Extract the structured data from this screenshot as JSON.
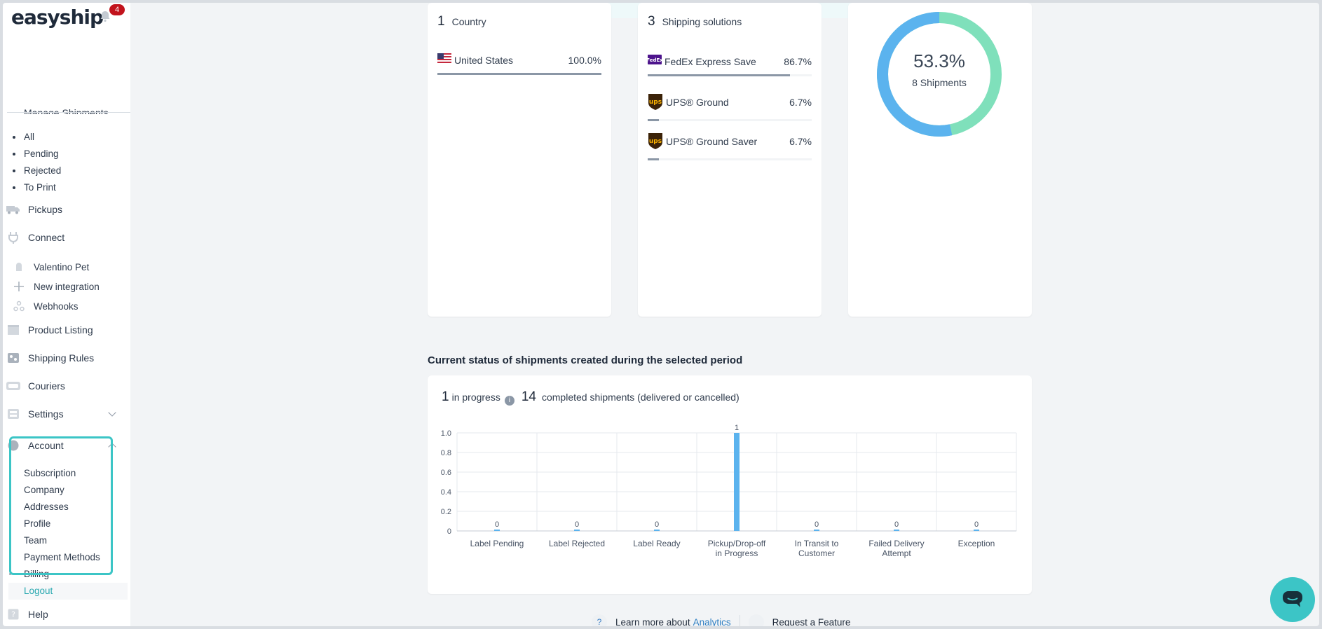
{
  "brand": {
    "logo_text": "easyship",
    "notification_count": "4"
  },
  "sidebar": {
    "manage_shipments_label": "Manage Shipments",
    "shipment_filters": [
      "All",
      "Pending",
      "Rejected",
      "To Print"
    ],
    "pickups": "Pickups",
    "connect": "Connect",
    "connect_items": [
      "Valentino Pet",
      "New integration",
      "Webhooks"
    ],
    "product_listing": "Product Listing",
    "shipping_rules": "Shipping Rules",
    "couriers": "Couriers",
    "settings": "Settings",
    "account": "Account",
    "account_items": [
      "Subscription",
      "Company",
      "Addresses",
      "Profile",
      "Team",
      "Payment Methods",
      "Billing",
      "Logout"
    ],
    "help": "Help"
  },
  "countries_card": {
    "count": "1",
    "label": "Country",
    "rows": [
      {
        "name": "United States",
        "pct_text": "100.0%",
        "fraction": 1.0
      }
    ]
  },
  "solutions_card": {
    "count": "3",
    "label": "Shipping solutions",
    "rows": [
      {
        "name": "FedEx Express Save",
        "pct_text": "86.7%",
        "fraction": 0.867,
        "logo": "fedex-logo"
      },
      {
        "name": "UPS® Ground",
        "pct_text": "6.7%",
        "fraction": 0.067,
        "logo": "ups-logo"
      },
      {
        "name": "UPS® Ground Saver",
        "pct_text": "6.7%",
        "fraction": 0.067,
        "logo": "ups-logo"
      }
    ]
  },
  "donut": {
    "percent_text": "53.3%",
    "shipments_text": "8 Shipments",
    "fraction": 0.533,
    "colors": {
      "primary": "#5bb3ee",
      "secondary": "#7fe0bb"
    }
  },
  "status_section": {
    "title": "Current status of shipments created during the selected period",
    "in_progress_count": "1",
    "in_progress_label": "in progress",
    "completed_count": "14",
    "completed_label": "completed shipments (delivered or cancelled)"
  },
  "chart_data": {
    "type": "bar",
    "categories": [
      "Label Pending",
      "Label Rejected",
      "Label Ready",
      "Pickup/Drop-off in Progress",
      "In Transit to Customer",
      "Failed Delivery Attempt",
      "Exception"
    ],
    "category_lines": [
      [
        "Label Pending"
      ],
      [
        "Label Rejected"
      ],
      [
        "Label Ready"
      ],
      [
        "Pickup/Drop-off",
        "in Progress"
      ],
      [
        "In Transit to",
        "Customer"
      ],
      [
        "Failed Delivery",
        "Attempt"
      ],
      [
        "Exception"
      ]
    ],
    "values": [
      0,
      0,
      0,
      1,
      0,
      0,
      0
    ],
    "ylim": [
      0,
      1.0
    ],
    "yticks": [
      "0",
      "0.2",
      "0.4",
      "0.6",
      "0.8",
      "1.0"
    ],
    "bar_color": "#5bb3ee",
    "grid": true
  },
  "footer": {
    "learn_prefix": "Learn more about",
    "learn_link": "Analytics",
    "request_feature": "Request a Feature"
  },
  "colors": {
    "accent": "#3cc5c6",
    "link": "#2f7fc3",
    "badge": "#c2131c"
  }
}
